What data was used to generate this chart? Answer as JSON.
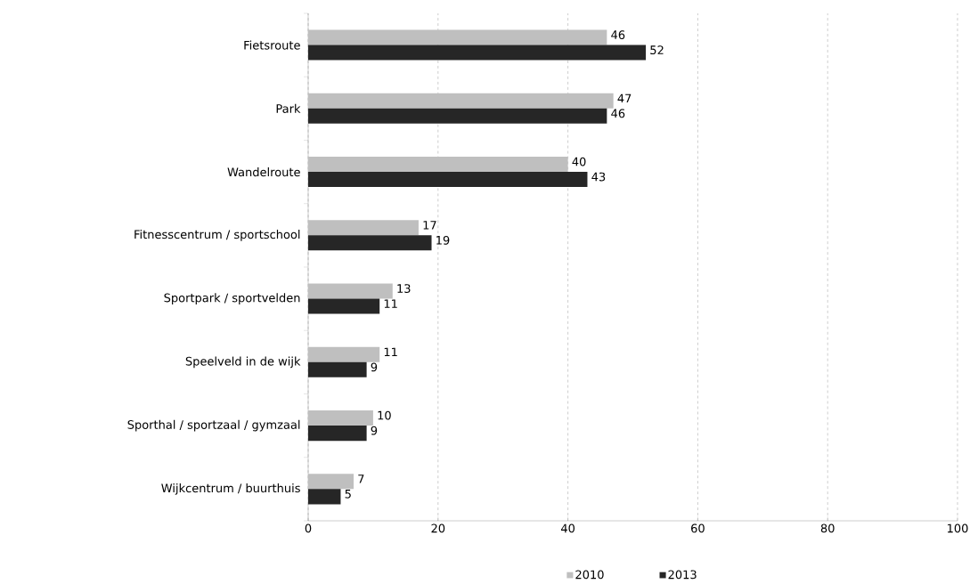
{
  "chart_data": {
    "type": "bar",
    "orientation": "horizontal",
    "categories": [
      "Fietsroute",
      "Park",
      "Wandelroute",
      "Fitnesscentrum / sportschool",
      "Sportpark / sportvelden",
      "Speelveld in de wijk",
      "Sporthal / sportzaal / gymzaal",
      "Wijkcentrum / buurthuis"
    ],
    "series": [
      {
        "name": "2010",
        "color": "#bfbfbf",
        "values": [
          46,
          47,
          40,
          17,
          13,
          11,
          10,
          7
        ]
      },
      {
        "name": "2013",
        "color": "#262626",
        "values": [
          52,
          46,
          43,
          19,
          11,
          9,
          9,
          5
        ]
      }
    ],
    "xlim": [
      0,
      100
    ],
    "xticks": [
      0,
      20,
      40,
      60,
      80,
      100
    ],
    "grid": "x",
    "legend": "bottom",
    "data_labels": true
  }
}
